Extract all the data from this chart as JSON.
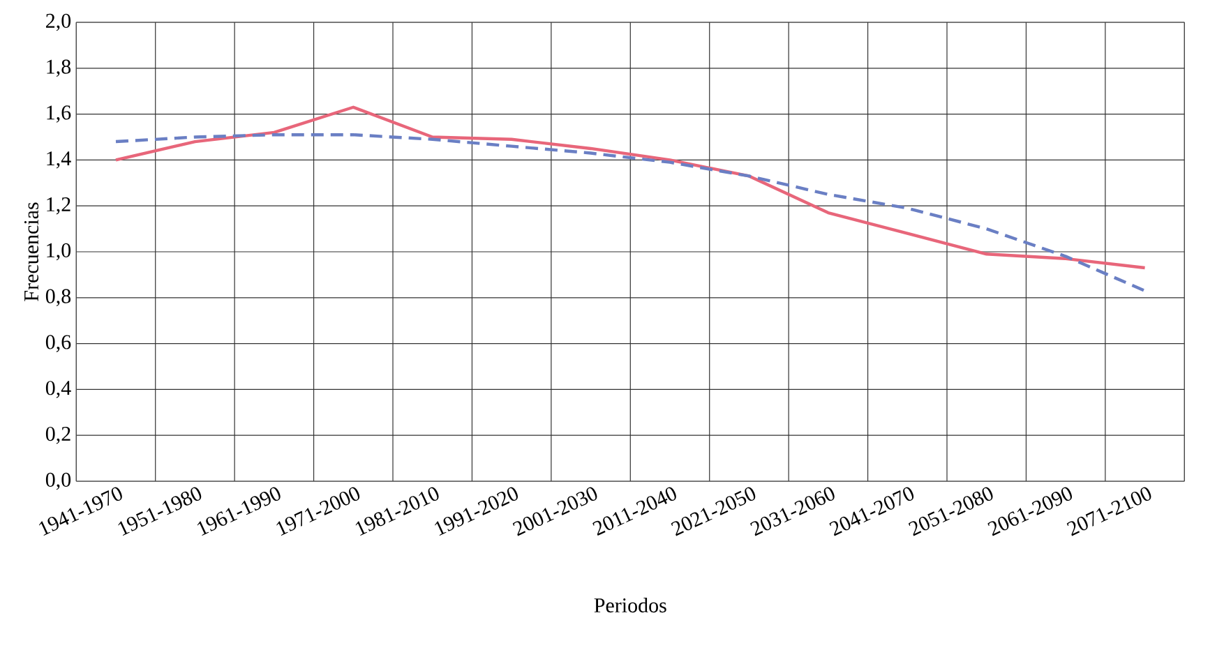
{
  "chart_data": {
    "type": "line",
    "xlabel": "Periodos",
    "ylabel": "Frecuencias",
    "categories": [
      "1941-1970",
      "1951-1980",
      "1961-1990",
      "1971-2000",
      "1981-2010",
      "1991-2020",
      "2001-2030",
      "2011-2040",
      "2021-2050",
      "2031-2060",
      "2041-2070",
      "2051-2080",
      "2061-2090",
      "2071-2100"
    ],
    "series": [
      {
        "color": "#e8667a",
        "line_style": "solid",
        "values": [
          1.4,
          1.48,
          1.52,
          1.63,
          1.5,
          1.49,
          1.45,
          1.4,
          1.33,
          1.17,
          1.08,
          0.99,
          0.97,
          0.93
        ]
      },
      {
        "color": "#6a7fc4",
        "line_style": "dashed",
        "values": [
          1.48,
          1.5,
          1.51,
          1.51,
          1.49,
          1.46,
          1.43,
          1.39,
          1.33,
          1.25,
          1.19,
          1.1,
          0.98,
          0.83
        ]
      }
    ],
    "ylim": [
      0,
      2
    ],
    "yticks": [
      {
        "value": 0,
        "label": "0,0"
      },
      {
        "value": 0.2,
        "label": "0,2"
      },
      {
        "value": 0.4,
        "label": "0,4"
      },
      {
        "value": 0.6,
        "label": "0,6"
      },
      {
        "value": 0.8,
        "label": "0,8"
      },
      {
        "value": 1.0,
        "label": "1,0"
      },
      {
        "value": 1.2,
        "label": "1,2"
      },
      {
        "value": 1.4,
        "label": "1,4"
      },
      {
        "value": 1.6,
        "label": "1,6"
      },
      {
        "value": 1.8,
        "label": "1,8"
      },
      {
        "value": 2.0,
        "label": "2,0"
      }
    ],
    "grid": true,
    "marker": "none"
  }
}
